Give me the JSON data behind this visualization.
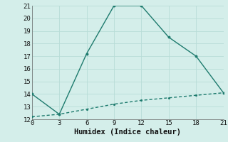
{
  "xlabel": "Humidex (Indice chaleur)",
  "line1_x": [
    0,
    3,
    6,
    9,
    12,
    15,
    18,
    21
  ],
  "line1_y": [
    14.0,
    12.4,
    17.2,
    21.0,
    21.0,
    18.5,
    17.0,
    14.1
  ],
  "line2_x": [
    0,
    3,
    6,
    9,
    12,
    15,
    18,
    21
  ],
  "line2_y": [
    12.2,
    12.4,
    12.8,
    13.2,
    13.5,
    13.7,
    13.9,
    14.1
  ],
  "line_color": "#1e7b6e",
  "bg_color": "#d4eeea",
  "grid_color": "#b8ddd7",
  "xlim": [
    0,
    21
  ],
  "ylim": [
    12,
    21
  ],
  "xticks": [
    0,
    3,
    6,
    9,
    12,
    15,
    18,
    21
  ],
  "yticks": [
    12,
    13,
    14,
    15,
    16,
    17,
    18,
    19,
    20,
    21
  ],
  "xlabel_fontsize": 7.5,
  "tick_fontsize": 6.5,
  "marker_size": 2.8,
  "line_width": 1.0
}
